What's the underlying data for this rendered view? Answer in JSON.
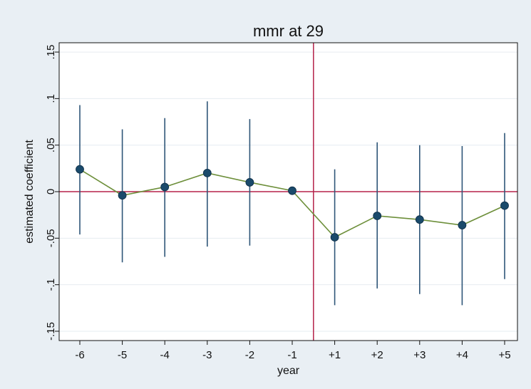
{
  "chart_data": {
    "type": "scatter",
    "title": "mmr at 29",
    "xlabel": "year",
    "ylabel": "estimated coefficient",
    "categories": [
      "-6",
      "-5",
      "-4",
      "-3",
      "-2",
      "-1",
      "+1",
      "+2",
      "+3",
      "+4",
      "+5"
    ],
    "ylim": [
      -0.16,
      0.16
    ],
    "yticks": [
      -0.15,
      -0.1,
      -0.05,
      0,
      0.05,
      0.1,
      0.15
    ],
    "ytick_labels": [
      "-.15",
      "-.1",
      "-.05",
      "0",
      ".05",
      ".1",
      ".15"
    ],
    "grid": true,
    "series": [
      {
        "values": [
          0.024,
          -0.004,
          0.005,
          0.02,
          0.01,
          0.001,
          -0.049,
          -0.026,
          -0.03,
          -0.036,
          -0.015
        ],
        "ci_low": [
          -0.046,
          -0.076,
          -0.07,
          -0.059,
          -0.058,
          -0.001,
          -0.122,
          -0.104,
          -0.11,
          -0.122,
          -0.094
        ],
        "ci_high": [
          0.093,
          0.067,
          0.079,
          0.097,
          0.078,
          0.001,
          0.024,
          0.053,
          0.05,
          0.049,
          0.063
        ]
      }
    ],
    "reference_lines": {
      "horizontal_y": 0,
      "vertical_between": [
        "-1",
        "+1"
      ]
    },
    "colors": {
      "background": "#e9eff4",
      "plot_background": "#ffffff",
      "grid": "#e6ecf1",
      "marker": "#1a4a6b",
      "ci": "#2f5678",
      "connector": "#6d8f3a",
      "reference": "#b5224a"
    }
  }
}
